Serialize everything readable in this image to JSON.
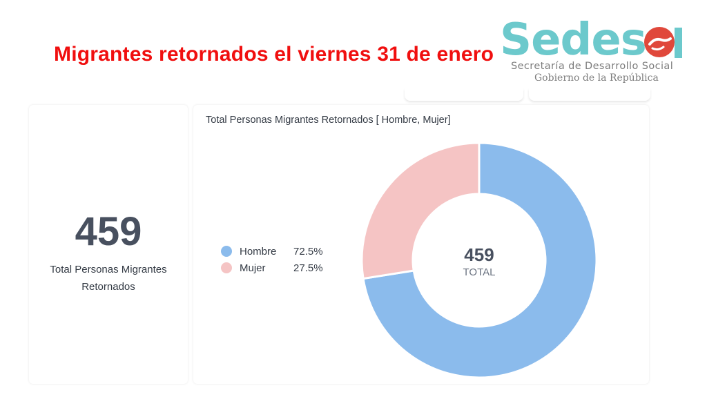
{
  "headline": "Migrantes retornados el viernes 31 de enero",
  "logo": {
    "word": "Sedesol",
    "line1": "Secretaría de Desarrollo Social",
    "line2": "Gobierno de la República"
  },
  "kpi": {
    "value": "459",
    "label_line1": "Total Personas Migrantes",
    "label_line2": "Retornados"
  },
  "chart_data": {
    "type": "pie",
    "title": "Total Personas Migrantes Retornados [ Hombre, Mujer]",
    "categories": [
      "Hombre",
      "Mujer"
    ],
    "values": [
      72.5,
      27.5
    ],
    "value_labels": [
      "72.5%",
      "27.5%"
    ],
    "colors": [
      "#8bbbec",
      "#f5c4c4"
    ],
    "center_value": "459",
    "center_label": "TOTAL",
    "legend_position": "left"
  },
  "colors": {
    "headline": "#f00f0f",
    "logo_teal": "#6cc9cc",
    "logo_red": "#e0483b"
  }
}
